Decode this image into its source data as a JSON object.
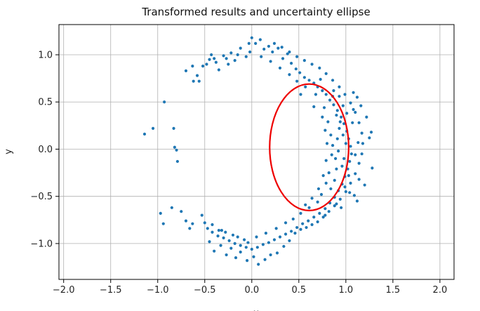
{
  "chart_data": {
    "type": "scatter",
    "title": "Transformed results and uncertainty ellipse",
    "xlabel": "x",
    "ylabel": "y",
    "xlim": [
      -2.05,
      2.15
    ],
    "ylim": [
      -1.38,
      1.32
    ],
    "xticks": [
      -2.0,
      -1.5,
      -1.0,
      -0.5,
      0.0,
      0.5,
      1.0,
      1.5,
      2.0
    ],
    "xtick_labels": [
      "−2.0",
      "−1.5",
      "−1.0",
      "−0.5",
      "0.0",
      "0.5",
      "1.0",
      "1.5",
      "2.0"
    ],
    "yticks": [
      -1.0,
      -0.5,
      0.0,
      0.5,
      1.0
    ],
    "ytick_labels": [
      "−1.0",
      "−0.5",
      "0.0",
      "0.5",
      "1.0"
    ],
    "grid": true,
    "series": [
      {
        "marker_color": "#1f77b4",
        "points": [
          [
            -1.14,
            0.16
          ],
          [
            -1.05,
            0.22
          ],
          [
            -0.93,
            0.5
          ],
          [
            -0.83,
            0.22
          ],
          [
            -0.82,
            0.02
          ],
          [
            -0.8,
            -0.01
          ],
          [
            -0.79,
            -0.13
          ],
          [
            -0.97,
            -0.68
          ],
          [
            -0.85,
            -0.62
          ],
          [
            -0.94,
            -0.79
          ],
          [
            -0.75,
            -0.66
          ],
          [
            -0.7,
            -0.76
          ],
          [
            -0.66,
            -0.84
          ],
          [
            -0.63,
            -0.79
          ],
          [
            -0.53,
            -0.7
          ],
          [
            -0.7,
            0.83
          ],
          [
            -0.63,
            0.88
          ],
          [
            -0.56,
            0.72
          ],
          [
            -0.48,
            0.9
          ],
          [
            -0.45,
            0.95
          ],
          [
            -0.4,
            0.96
          ],
          [
            -0.35,
            0.84
          ],
          [
            -0.3,
            0.99
          ],
          [
            -0.25,
            0.9
          ],
          [
            -0.22,
            1.02
          ],
          [
            -0.18,
            0.94
          ],
          [
            -0.12,
            1.07
          ],
          [
            -0.06,
            0.98
          ],
          [
            -0.03,
            1.12
          ],
          [
            0.0,
            1.18
          ],
          [
            0.04,
            1.12
          ],
          [
            0.09,
            1.16
          ],
          [
            0.13,
            1.06
          ],
          [
            0.18,
            1.09
          ],
          [
            0.22,
            1.03
          ],
          [
            0.28,
            1.07
          ],
          [
            0.33,
            0.96
          ],
          [
            0.38,
            1.01
          ],
          [
            0.42,
            0.91
          ],
          [
            0.47,
            0.85
          ],
          [
            0.51,
            0.81
          ],
          [
            0.56,
            0.76
          ],
          [
            0.61,
            0.73
          ],
          [
            0.66,
            0.7
          ],
          [
            0.7,
            0.66
          ],
          [
            0.75,
            0.62
          ],
          [
            0.79,
            0.58
          ],
          [
            0.83,
            0.52
          ],
          [
            0.87,
            0.47
          ],
          [
            0.91,
            0.41
          ],
          [
            0.95,
            0.34
          ],
          [
            0.98,
            0.27
          ],
          [
            1.01,
            0.19
          ],
          [
            1.03,
            0.11
          ],
          [
            1.05,
            0.03
          ],
          [
            1.06,
            -0.05
          ],
          [
            1.04,
            -0.13
          ],
          [
            1.02,
            -0.21
          ],
          [
            0.99,
            -0.29
          ],
          [
            0.96,
            -0.37
          ],
          [
            0.92,
            -0.44
          ],
          [
            0.88,
            -0.51
          ],
          [
            0.83,
            -0.57
          ],
          [
            0.78,
            -0.63
          ],
          [
            0.72,
            -0.68
          ],
          [
            0.66,
            -0.72
          ],
          [
            0.6,
            -0.76
          ],
          [
            0.54,
            -0.79
          ],
          [
            0.48,
            -0.83
          ],
          [
            0.42,
            -0.87
          ],
          [
            0.36,
            -0.9
          ],
          [
            0.3,
            -0.93
          ],
          [
            0.24,
            -0.96
          ],
          [
            0.18,
            -0.99
          ],
          [
            0.12,
            -1.01
          ],
          [
            0.06,
            -1.04
          ],
          [
            0.0,
            -1.06
          ],
          [
            -0.06,
            -1.04
          ],
          [
            -0.12,
            -1.02
          ],
          [
            -0.18,
            -1.0
          ],
          [
            -0.24,
            -0.97
          ],
          [
            -0.3,
            -0.94
          ],
          [
            -0.36,
            -0.92
          ],
          [
            -0.42,
            -0.88
          ],
          [
            -0.47,
            -0.84
          ],
          [
            -0.45,
            -0.98
          ],
          [
            -0.4,
            -1.08
          ],
          [
            -0.33,
            -1.02
          ],
          [
            -0.27,
            -1.12
          ],
          [
            -0.22,
            -1.05
          ],
          [
            -0.17,
            -1.15
          ],
          [
            -0.12,
            -1.09
          ],
          [
            -0.05,
            -1.18
          ],
          [
            0.02,
            -1.14
          ],
          [
            0.07,
            -1.22
          ],
          [
            0.14,
            -1.17
          ],
          [
            0.2,
            -1.12
          ],
          [
            0.27,
            -1.1
          ],
          [
            0.34,
            -1.03
          ],
          [
            0.4,
            -0.97
          ],
          [
            0.46,
            -0.89
          ],
          [
            0.52,
            -0.85
          ],
          [
            0.58,
            -0.83
          ],
          [
            0.64,
            -0.8
          ],
          [
            0.7,
            -0.77
          ],
          [
            0.76,
            -0.72
          ],
          [
            0.82,
            -0.66
          ],
          [
            0.88,
            -0.6
          ],
          [
            0.94,
            -0.53
          ],
          [
            1.0,
            -0.45
          ],
          [
            1.05,
            -0.36
          ],
          [
            1.1,
            -0.26
          ],
          [
            1.14,
            -0.15
          ],
          [
            1.17,
            -0.05
          ],
          [
            1.18,
            0.06
          ],
          [
            1.17,
            0.17
          ],
          [
            1.14,
            0.28
          ],
          [
            1.1,
            0.39
          ],
          [
            1.05,
            0.49
          ],
          [
            0.99,
            0.58
          ],
          [
            0.93,
            0.66
          ],
          [
            0.86,
            0.73
          ],
          [
            0.79,
            0.8
          ],
          [
            0.72,
            0.86
          ],
          [
            0.64,
            0.9
          ],
          [
            0.56,
            0.94
          ],
          [
            0.48,
            0.98
          ],
          [
            0.4,
            1.03
          ],
          [
            0.32,
            1.08
          ],
          [
            0.24,
            1.12
          ],
          [
            1.28,
            -0.2
          ],
          [
            1.25,
            0.12
          ],
          [
            1.22,
            0.34
          ],
          [
            1.27,
            0.18
          ],
          [
            1.2,
            -0.38
          ],
          [
            1.12,
            0.55
          ],
          [
            1.08,
            0.6
          ],
          [
            1.16,
            0.46
          ],
          [
            1.09,
            -0.49
          ],
          [
            1.12,
            -0.55
          ],
          [
            0.97,
            0.46
          ],
          [
            0.93,
            0.56
          ],
          [
            0.9,
            0.36
          ],
          [
            0.93,
            0.22
          ],
          [
            0.91,
            0.11
          ],
          [
            0.92,
            -0.02
          ],
          [
            0.89,
            -0.1
          ],
          [
            0.9,
            -0.21
          ],
          [
            0.88,
            -0.33
          ],
          [
            0.84,
            -0.42
          ],
          [
            0.81,
            0.29
          ],
          [
            0.84,
            0.15
          ],
          [
            0.86,
            0.04
          ],
          [
            0.85,
            -0.06
          ],
          [
            0.82,
            -0.25
          ],
          [
            0.79,
            -0.36
          ],
          [
            0.77,
            0.44
          ],
          [
            0.74,
            -0.48
          ],
          [
            0.7,
            -0.56
          ],
          [
            0.68,
            0.58
          ],
          [
            0.61,
            -0.62
          ],
          [
            0.57,
            0.66
          ],
          [
            0.52,
            -0.68
          ],
          [
            0.48,
            0.72
          ],
          [
            0.44,
            -0.74
          ],
          [
            0.4,
            0.79
          ],
          [
            0.36,
            -0.78
          ],
          [
            0.3,
            0.86
          ],
          [
            0.26,
            -0.84
          ],
          [
            0.2,
            0.93
          ],
          [
            0.15,
            -0.89
          ],
          [
            0.1,
            0.98
          ],
          [
            0.05,
            -0.93
          ],
          [
            -0.02,
            1.03
          ],
          [
            -0.08,
            -0.96
          ],
          [
            -0.15,
            1.0
          ],
          [
            -0.2,
            -0.91
          ],
          [
            -0.27,
            0.96
          ],
          [
            -0.32,
            -0.86
          ],
          [
            -0.38,
            0.92
          ],
          [
            -0.43,
            1.0
          ],
          [
            -0.52,
            0.88
          ],
          [
            -0.58,
            0.78
          ],
          [
            -0.62,
            0.72
          ],
          [
            -0.5,
            -0.78
          ],
          [
            -0.42,
            -0.8
          ],
          [
            -0.35,
            -0.86
          ],
          [
            -0.28,
            -0.88
          ],
          [
            -0.15,
            -0.93
          ],
          [
            -0.04,
            -0.99
          ],
          [
            0.52,
            0.58
          ],
          [
            0.66,
            0.45
          ],
          [
            0.75,
            0.34
          ],
          [
            0.78,
            0.2
          ],
          [
            0.8,
            0.06
          ],
          [
            0.79,
            -0.12
          ],
          [
            0.76,
            -0.28
          ],
          [
            0.71,
            -0.42
          ],
          [
            0.64,
            -0.52
          ],
          [
            0.57,
            -0.59
          ],
          [
            0.98,
            -0.1
          ],
          [
            1.0,
            0.06
          ],
          [
            0.97,
            0.15
          ],
          [
            1.03,
            -0.28
          ],
          [
            1.07,
            0.28
          ],
          [
            0.94,
            0.29
          ],
          [
            0.96,
            -0.18
          ],
          [
            0.99,
            -0.4
          ],
          [
            1.01,
            0.38
          ],
          [
            0.87,
            0.62
          ],
          [
            1.13,
            0.07
          ],
          [
            1.1,
            -0.06
          ],
          [
            1.14,
            -0.32
          ],
          [
            1.08,
            0.42
          ],
          [
            1.04,
            -0.46
          ],
          [
            0.9,
            -0.58
          ],
          [
            0.86,
            0.56
          ],
          [
            0.95,
            -0.62
          ],
          [
            0.78,
            -0.7
          ],
          [
            0.73,
            0.74
          ]
        ]
      }
    ],
    "ellipse": {
      "color": "#ee0000",
      "center": [
        0.61,
        0.02
      ],
      "rx": 0.42,
      "ry": 0.67
    }
  }
}
